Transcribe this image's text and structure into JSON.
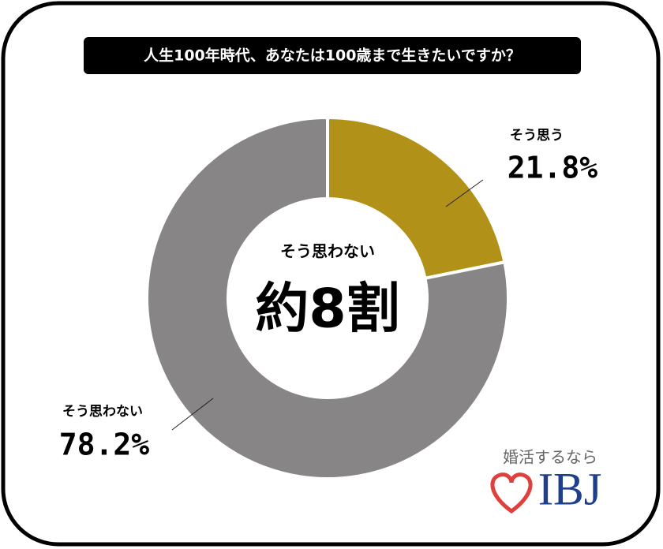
{
  "chart_data": {
    "type": "donut",
    "title": "人生100年時代、あなたは100歳まで生きたいですか？",
    "categories": [
      "そう思う",
      "そう思わない"
    ],
    "values": [
      21.8,
      78.2
    ],
    "value_labels": [
      "21.8%",
      "78.2%"
    ],
    "colors": [
      "#b29119",
      "#878585"
    ],
    "annotations": [
      "そう思わない",
      "約8割"
    ]
  },
  "logo": {
    "tagline": "婚活するなら",
    "name": "IBJ"
  }
}
